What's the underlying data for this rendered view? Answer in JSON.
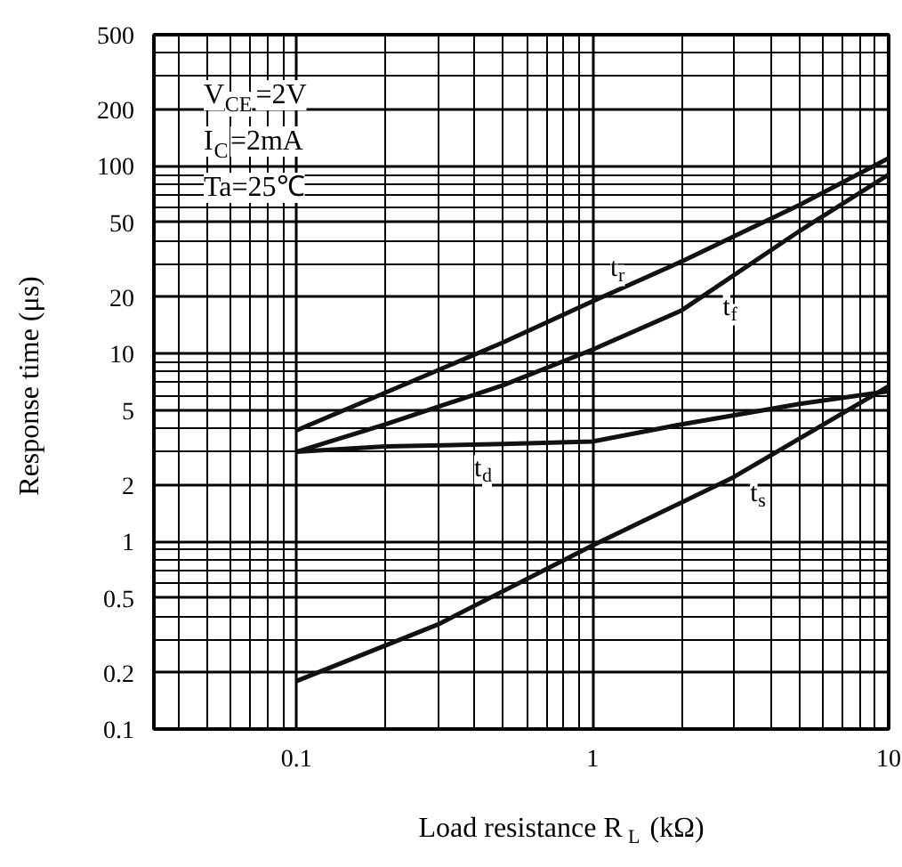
{
  "chart_data": {
    "type": "line",
    "xlabel": "Load resistance R$_{L}$ (kΩ)",
    "ylabel": "Response time (μs)",
    "annotations": [
      "V$_{CE}$=2V",
      "I$_{C}$=2mA",
      "Ta=25℃"
    ],
    "log": "xy",
    "xlim": [
      0.033,
      10
    ],
    "ylim": [
      0.1,
      500
    ],
    "xticks": [
      0.1,
      1,
      10
    ],
    "yticks": [
      0.1,
      0.2,
      0.5,
      1,
      2,
      5,
      10,
      20,
      50,
      100,
      200,
      500
    ],
    "grid": true,
    "legend": false,
    "marker": "none",
    "line_style": "solid",
    "series": [
      {
        "name": "t$_{r}$",
        "color": "#111111",
        "x": [
          0.1,
          0.2,
          0.5,
          1,
          2,
          5,
          10
        ],
        "values": [
          3.9,
          6.2,
          11.5,
          19,
          31,
          62,
          110
        ]
      },
      {
        "name": "t$_{f}$",
        "color": "#111111",
        "x": [
          0.1,
          0.2,
          0.5,
          1,
          2,
          5,
          10
        ],
        "values": [
          3.0,
          4.2,
          6.8,
          10.5,
          17,
          45,
          90
        ]
      },
      {
        "name": "t$_{d}$",
        "color": "#111111",
        "x": [
          0.1,
          0.2,
          0.5,
          1,
          2,
          5,
          10
        ],
        "values": [
          3.0,
          3.2,
          3.3,
          3.4,
          4.2,
          5.4,
          6.3
        ]
      },
      {
        "name": "t$_{s}$",
        "color": "#111111",
        "x": [
          0.1,
          0.3,
          1,
          3,
          10
        ],
        "values": [
          0.18,
          0.36,
          0.95,
          2.2,
          6.7
        ]
      }
    ]
  }
}
